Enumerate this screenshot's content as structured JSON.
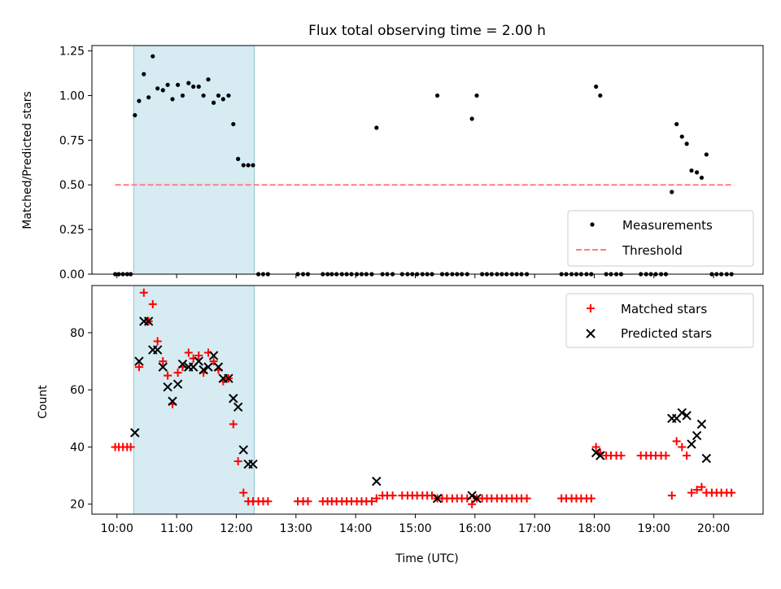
{
  "title": "Flux total observing time = 2.00 h",
  "chart_data": [
    {
      "type": "scatter",
      "panel": "top",
      "ylabel": "Matched/Predicted stars",
      "ylim": [
        0,
        1.28
      ],
      "yticks": [
        0.0,
        0.25,
        0.5,
        0.75,
        1.0,
        1.25
      ],
      "ytick_labels": [
        "0.00",
        "0.25",
        "0.50",
        "0.75",
        "1.00",
        "1.25"
      ],
      "xlim": [
        9.58,
        20.83
      ],
      "shaded_interval": [
        10.28,
        12.3
      ],
      "legend": {
        "position": "lower-right",
        "entries": [
          "Measurements",
          "Threshold"
        ]
      },
      "threshold": {
        "name": "Threshold",
        "y": 0.5,
        "x_range": [
          9.97,
          20.33
        ],
        "color": "#ff7f7f"
      },
      "series": [
        {
          "name": "Measurements",
          "color": "#000000",
          "points": [
            [
              9.97,
              0
            ],
            [
              10.03,
              0
            ],
            [
              10.1,
              0
            ],
            [
              10.17,
              0
            ],
            [
              10.23,
              0
            ],
            [
              10.3,
              0.89
            ],
            [
              10.37,
              0.97
            ],
            [
              10.45,
              1.12
            ],
            [
              10.53,
              0.99
            ],
            [
              10.6,
              1.22
            ],
            [
              10.68,
              1.04
            ],
            [
              10.77,
              1.03
            ],
            [
              10.85,
              1.06
            ],
            [
              10.93,
              0.98
            ],
            [
              11.02,
              1.06
            ],
            [
              11.1,
              1.0
            ],
            [
              11.2,
              1.07
            ],
            [
              11.28,
              1.05
            ],
            [
              11.37,
              1.05
            ],
            [
              11.45,
              1.0
            ],
            [
              11.53,
              1.09
            ],
            [
              11.62,
              0.96
            ],
            [
              11.7,
              1.0
            ],
            [
              11.78,
              0.98
            ],
            [
              11.87,
              1.0
            ],
            [
              11.95,
              0.84
            ],
            [
              12.03,
              0.645
            ],
            [
              12.12,
              0.61
            ],
            [
              12.2,
              0.61
            ],
            [
              12.28,
              0.61
            ],
            [
              12.37,
              0
            ],
            [
              12.45,
              0
            ],
            [
              12.53,
              0
            ],
            [
              13.03,
              0
            ],
            [
              13.12,
              0
            ],
            [
              13.2,
              0
            ],
            [
              13.45,
              0
            ],
            [
              13.53,
              0
            ],
            [
              13.6,
              0
            ],
            [
              13.68,
              0
            ],
            [
              13.77,
              0
            ],
            [
              13.85,
              0
            ],
            [
              13.93,
              0
            ],
            [
              14.02,
              0
            ],
            [
              14.1,
              0
            ],
            [
              14.18,
              0
            ],
            [
              14.27,
              0
            ],
            [
              14.35,
              0.82
            ],
            [
              14.45,
              0
            ],
            [
              14.53,
              0
            ],
            [
              14.62,
              0
            ],
            [
              14.78,
              0
            ],
            [
              14.87,
              0
            ],
            [
              14.95,
              0
            ],
            [
              15.03,
              0
            ],
            [
              15.12,
              0
            ],
            [
              15.2,
              0
            ],
            [
              15.28,
              0
            ],
            [
              15.37,
              1.0
            ],
            [
              15.45,
              0
            ],
            [
              15.53,
              0
            ],
            [
              15.62,
              0
            ],
            [
              15.7,
              0
            ],
            [
              15.78,
              0
            ],
            [
              15.87,
              0
            ],
            [
              15.95,
              0.87
            ],
            [
              16.03,
              1.0
            ],
            [
              16.12,
              0
            ],
            [
              16.2,
              0
            ],
            [
              16.28,
              0
            ],
            [
              16.37,
              0
            ],
            [
              16.45,
              0
            ],
            [
              16.53,
              0
            ],
            [
              16.62,
              0
            ],
            [
              16.7,
              0
            ],
            [
              16.78,
              0
            ],
            [
              16.87,
              0
            ],
            [
              17.45,
              0
            ],
            [
              17.53,
              0
            ],
            [
              17.62,
              0
            ],
            [
              17.7,
              0
            ],
            [
              17.78,
              0
            ],
            [
              17.87,
              0
            ],
            [
              17.95,
              0
            ],
            [
              18.03,
              1.05
            ],
            [
              18.1,
              1.0
            ],
            [
              18.2,
              0
            ],
            [
              18.28,
              0
            ],
            [
              18.37,
              0
            ],
            [
              18.45,
              0
            ],
            [
              18.78,
              0
            ],
            [
              18.87,
              0
            ],
            [
              18.95,
              0
            ],
            [
              19.03,
              0
            ],
            [
              19.12,
              0
            ],
            [
              19.2,
              0
            ],
            [
              19.3,
              0.46
            ],
            [
              19.38,
              0.84
            ],
            [
              19.47,
              0.77
            ],
            [
              19.55,
              0.73
            ],
            [
              19.63,
              0.58
            ],
            [
              19.72,
              0.57
            ],
            [
              19.8,
              0.54
            ],
            [
              19.88,
              0.67
            ],
            [
              19.97,
              0
            ],
            [
              20.05,
              0
            ],
            [
              20.13,
              0
            ],
            [
              20.22,
              0
            ],
            [
              20.3,
              0
            ]
          ]
        }
      ]
    },
    {
      "type": "scatter",
      "panel": "bottom",
      "ylabel": "Count",
      "xlabel": "Time (UTC)",
      "ylim": [
        16.5,
        96.5
      ],
      "yticks": [
        20,
        40,
        60,
        80
      ],
      "ytick_labels": [
        "20",
        "40",
        "60",
        "80"
      ],
      "xlim": [
        9.58,
        20.83
      ],
      "xticks": [
        10,
        11,
        12,
        13,
        14,
        15,
        16,
        17,
        18,
        19,
        20
      ],
      "xtick_labels": [
        "10:00",
        "11:00",
        "12:00",
        "13:00",
        "14:00",
        "15:00",
        "16:00",
        "17:00",
        "18:00",
        "19:00",
        "20:00"
      ],
      "shaded_interval": [
        10.28,
        12.3
      ],
      "legend": {
        "position": "top-right",
        "entries": [
          "Matched stars",
          "Predicted stars"
        ]
      },
      "series": [
        {
          "name": "Matched stars",
          "marker": "plus",
          "color": "#ff0000",
          "points": [
            [
              9.97,
              40
            ],
            [
              10.03,
              40
            ],
            [
              10.1,
              40
            ],
            [
              10.17,
              40
            ],
            [
              10.23,
              40
            ],
            [
              10.37,
              68
            ],
            [
              10.45,
              94
            ],
            [
              10.53,
              84
            ],
            [
              10.6,
              90
            ],
            [
              10.68,
              77
            ],
            [
              10.77,
              70
            ],
            [
              10.85,
              65
            ],
            [
              10.93,
              55
            ],
            [
              11.02,
              66
            ],
            [
              11.1,
              68
            ],
            [
              11.2,
              73
            ],
            [
              11.28,
              71
            ],
            [
              11.37,
              72
            ],
            [
              11.45,
              66
            ],
            [
              11.53,
              73
            ],
            [
              11.62,
              70
            ],
            [
              11.7,
              67
            ],
            [
              11.78,
              63
            ],
            [
              11.87,
              64
            ],
            [
              11.95,
              48
            ],
            [
              12.03,
              35
            ],
            [
              12.12,
              24
            ],
            [
              12.2,
              21
            ],
            [
              12.28,
              21
            ],
            [
              12.37,
              21
            ],
            [
              12.45,
              21
            ],
            [
              12.53,
              21
            ],
            [
              13.03,
              21
            ],
            [
              13.12,
              21
            ],
            [
              13.2,
              21
            ],
            [
              13.45,
              21
            ],
            [
              13.53,
              21
            ],
            [
              13.6,
              21
            ],
            [
              13.68,
              21
            ],
            [
              13.77,
              21
            ],
            [
              13.85,
              21
            ],
            [
              13.93,
              21
            ],
            [
              14.02,
              21
            ],
            [
              14.1,
              21
            ],
            [
              14.18,
              21
            ],
            [
              14.27,
              21
            ],
            [
              14.35,
              22
            ],
            [
              14.45,
              23
            ],
            [
              14.53,
              23
            ],
            [
              14.62,
              23
            ],
            [
              14.78,
              23
            ],
            [
              14.87,
              23
            ],
            [
              14.95,
              23
            ],
            [
              15.03,
              23
            ],
            [
              15.12,
              23
            ],
            [
              15.2,
              23
            ],
            [
              15.28,
              23
            ],
            [
              15.37,
              22
            ],
            [
              15.45,
              22
            ],
            [
              15.53,
              22
            ],
            [
              15.62,
              22
            ],
            [
              15.7,
              22
            ],
            [
              15.78,
              22
            ],
            [
              15.87,
              22
            ],
            [
              15.95,
              20
            ],
            [
              16.03,
              22
            ],
            [
              16.12,
              22
            ],
            [
              16.2,
              22
            ],
            [
              16.28,
              22
            ],
            [
              16.37,
              22
            ],
            [
              16.45,
              22
            ],
            [
              16.53,
              22
            ],
            [
              16.62,
              22
            ],
            [
              16.7,
              22
            ],
            [
              16.78,
              22
            ],
            [
              16.87,
              22
            ],
            [
              17.45,
              22
            ],
            [
              17.53,
              22
            ],
            [
              17.62,
              22
            ],
            [
              17.7,
              22
            ],
            [
              17.78,
              22
            ],
            [
              17.87,
              22
            ],
            [
              17.95,
              22
            ],
            [
              18.03,
              40
            ],
            [
              18.1,
              38
            ],
            [
              18.2,
              37
            ],
            [
              18.28,
              37
            ],
            [
              18.37,
              37
            ],
            [
              18.45,
              37
            ],
            [
              18.78,
              37
            ],
            [
              18.87,
              37
            ],
            [
              18.95,
              37
            ],
            [
              19.03,
              37
            ],
            [
              19.12,
              37
            ],
            [
              19.2,
              37
            ],
            [
              19.3,
              23
            ],
            [
              19.38,
              42
            ],
            [
              19.47,
              40
            ],
            [
              19.55,
              37
            ],
            [
              19.63,
              24
            ],
            [
              19.72,
              25
            ],
            [
              19.8,
              26
            ],
            [
              19.88,
              24
            ],
            [
              19.97,
              24
            ],
            [
              20.05,
              24
            ],
            [
              20.13,
              24
            ],
            [
              20.22,
              24
            ],
            [
              20.3,
              24
            ]
          ]
        },
        {
          "name": "Predicted stars",
          "marker": "x",
          "color": "#000000",
          "points": [
            [
              10.3,
              45
            ],
            [
              10.37,
              70
            ],
            [
              10.45,
              84
            ],
            [
              10.53,
              84
            ],
            [
              10.6,
              74
            ],
            [
              10.68,
              74
            ],
            [
              10.77,
              68
            ],
            [
              10.85,
              61
            ],
            [
              10.93,
              56
            ],
            [
              11.02,
              62
            ],
            [
              11.1,
              69
            ],
            [
              11.2,
              68
            ],
            [
              11.28,
              68
            ],
            [
              11.37,
              70
            ],
            [
              11.45,
              67
            ],
            [
              11.53,
              68
            ],
            [
              11.62,
              72
            ],
            [
              11.7,
              68
            ],
            [
              11.78,
              64
            ],
            [
              11.87,
              64
            ],
            [
              11.95,
              57
            ],
            [
              12.03,
              54
            ],
            [
              12.12,
              39
            ],
            [
              12.2,
              34
            ],
            [
              12.28,
              34
            ],
            [
              14.35,
              28
            ],
            [
              15.37,
              22
            ],
            [
              15.95,
              23
            ],
            [
              16.03,
              22
            ],
            [
              18.03,
              38
            ],
            [
              18.1,
              37
            ],
            [
              19.3,
              50
            ],
            [
              19.38,
              50
            ],
            [
              19.47,
              52
            ],
            [
              19.55,
              51
            ],
            [
              19.63,
              41
            ],
            [
              19.72,
              44
            ],
            [
              19.8,
              48
            ],
            [
              19.88,
              36
            ]
          ]
        }
      ]
    }
  ]
}
